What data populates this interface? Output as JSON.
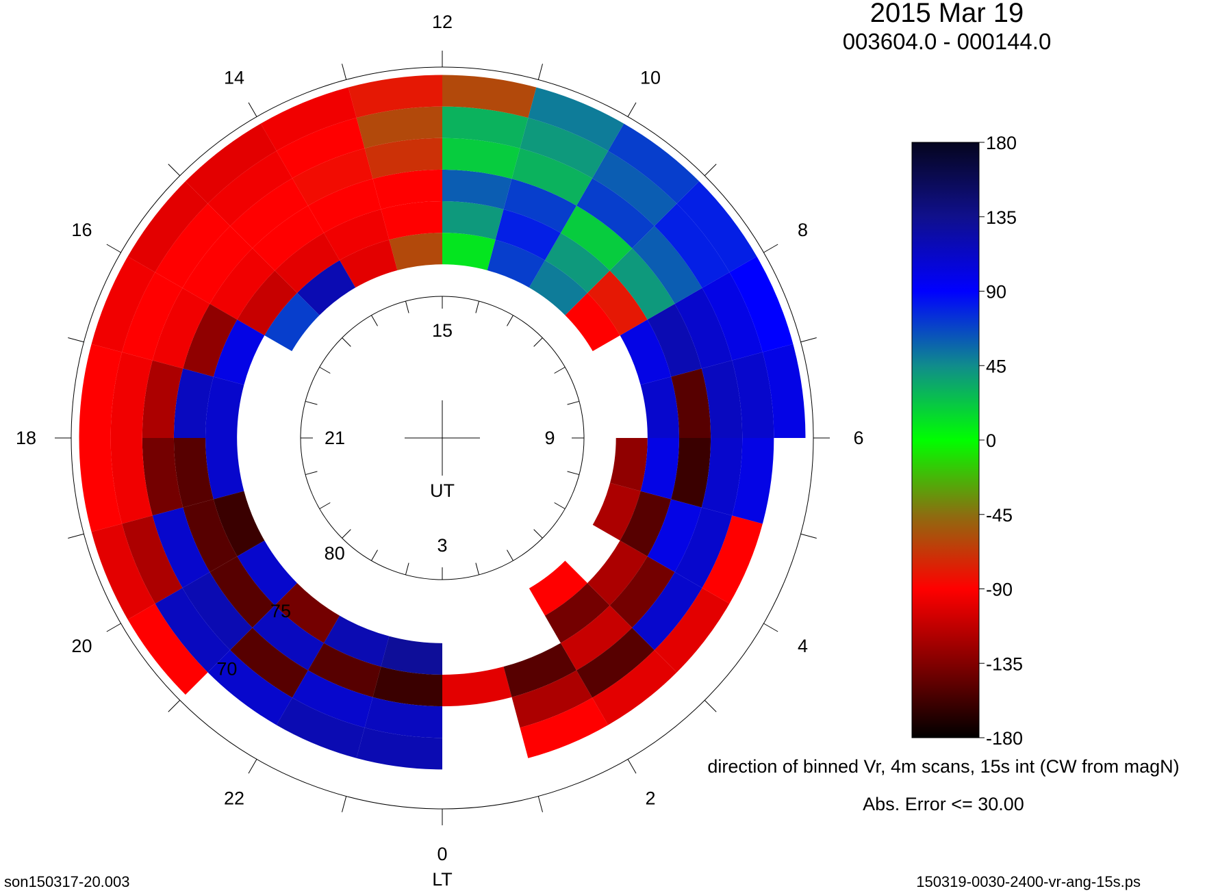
{
  "chart_data": {
    "type": "polar-grid",
    "title": "2015 Mar 19",
    "subtitle": "003604.0 - 000144.0",
    "caption": "direction of binned Vr, 4m scans, 15s int (CW from magN)",
    "error_note": "Abs. Error <= 30.00",
    "footer_left": "son150317-20.003",
    "footer_right": "150319-0030-2400-vr-ang-15s.ps",
    "lt_axis_label": "LT",
    "ut_axis_label": "UT",
    "lt_ticks": [
      12,
      10,
      8,
      6,
      4,
      2,
      0,
      22,
      20,
      18,
      16,
      14
    ],
    "ut_ticks": [
      15,
      9,
      3,
      21
    ],
    "lat_ticks": [
      80,
      75,
      70
    ],
    "latlim": [
      90,
      66.5
    ],
    "lt": [
      0,
      1,
      2,
      3,
      4,
      5,
      6,
      7,
      8,
      9,
      10,
      11,
      12,
      13,
      14,
      15,
      16,
      17,
      18,
      19,
      20,
      21,
      22,
      23
    ],
    "lat_bands": [
      [
        79,
        77
      ],
      [
        77,
        75
      ],
      [
        75,
        73
      ],
      [
        73,
        71
      ],
      [
        71,
        69
      ],
      [
        69,
        67
      ]
    ],
    "values": [
      [
        null,
        null,
        -100,
        null,
        null,
        null
      ],
      [
        null,
        null,
        -150,
        -120,
        -90,
        null
      ],
      [
        -90,
        -140,
        -110,
        -150,
        -100,
        null
      ],
      [
        null,
        -120,
        -140,
        110,
        -100,
        null
      ],
      [
        -120,
        -150,
        100,
        110,
        -90,
        null
      ],
      [
        -130,
        100,
        -160,
        110,
        100,
        null
      ],
      [
        null,
        110,
        -150,
        115,
        110,
        100
      ],
      [
        null,
        100,
        120,
        110,
        100,
        90
      ],
      [
        -90,
        -80,
        40,
        60,
        80,
        80
      ],
      [
        50,
        40,
        20,
        70,
        60,
        70
      ],
      [
        70,
        80,
        70,
        30,
        40,
        50
      ],
      [
        10,
        40,
        60,
        20,
        30,
        -60
      ],
      [
        -60,
        -90,
        -90,
        -70,
        -60,
        -80
      ],
      [
        -100,
        -95,
        -90,
        -85,
        -90,
        -95
      ],
      [
        120,
        -100,
        -90,
        -90,
        -95,
        -100
      ],
      [
        70,
        -110,
        -95,
        -90,
        -90,
        -100
      ],
      [
        null,
        100,
        -130,
        -95,
        -90,
        -95
      ],
      [
        null,
        110,
        115,
        -120,
        -95,
        -90
      ],
      [
        null,
        110,
        -150,
        -140,
        -95,
        -90
      ],
      [
        null,
        -160,
        -150,
        110,
        -120,
        -100
      ],
      [
        null,
        110,
        -150,
        120,
        115,
        -90
      ],
      [
        null,
        -140,
        115,
        -150,
        110,
        null
      ],
      [
        null,
        120,
        -150,
        110,
        120,
        null
      ],
      [
        null,
        130,
        -160,
        115,
        120,
        null
      ]
    ],
    "colorbar": {
      "ticks": [
        180,
        135,
        90,
        45,
        0,
        -45,
        -90,
        -135,
        -180
      ],
      "colors": [
        "#05051e",
        "#10108c",
        "#0000ff",
        "#108c8c",
        "#00ff00",
        "#8c6e10",
        "#ff0000",
        "#820000",
        "#000000"
      ]
    }
  }
}
